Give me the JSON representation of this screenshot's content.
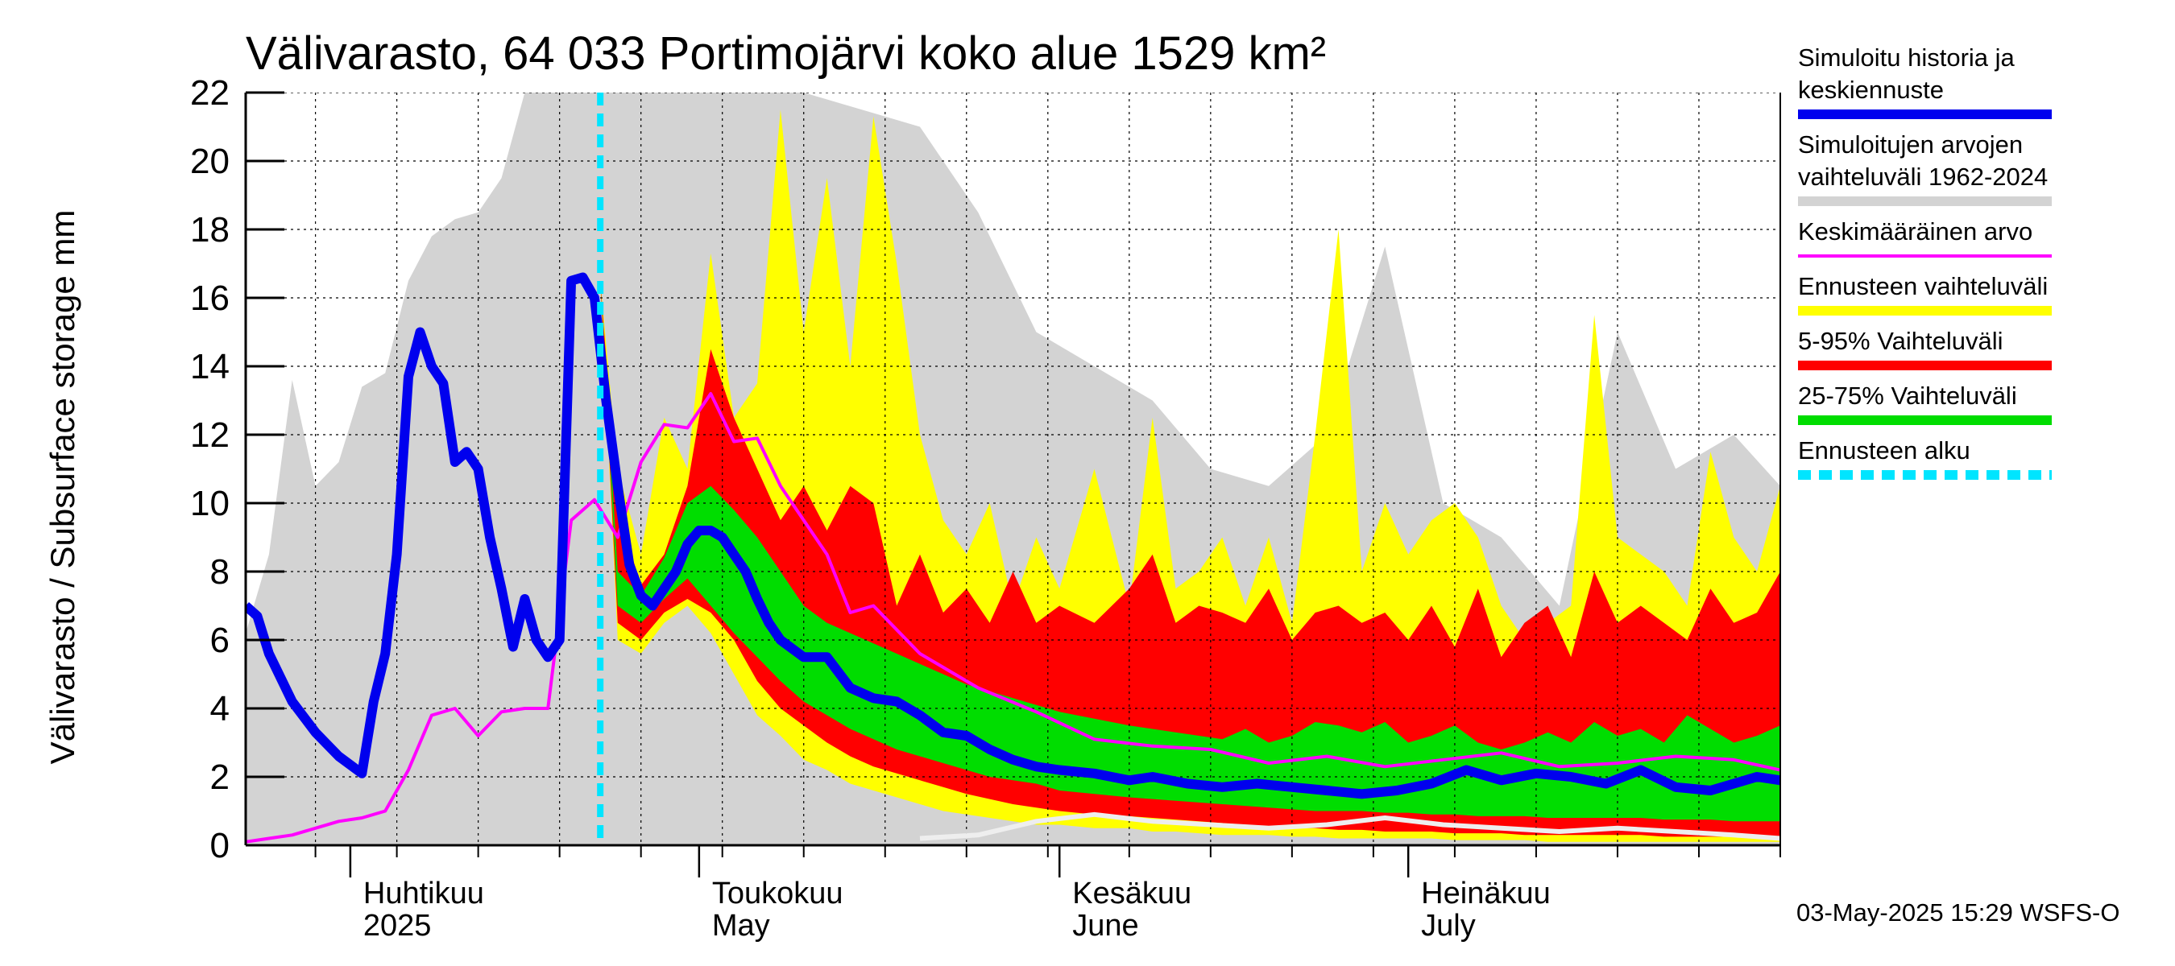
{
  "chart_data": {
    "type": "area",
    "title": "Välivarasto, 64 033 Portimojärvi koko alue 1529 km²",
    "ylabel": "Välivarasto / Subsurface storage  mm",
    "ylim": [
      0,
      22
    ],
    "yticks": [
      0,
      2,
      4,
      6,
      8,
      10,
      12,
      14,
      16,
      18,
      20,
      22
    ],
    "ytick_labels": [
      "0",
      "2",
      "4",
      "6",
      "8",
      "10",
      "12",
      "14",
      "16",
      "18",
      "20",
      "22"
    ],
    "x_unit": "day of year 2025",
    "xlim": [
      82,
      214
    ],
    "month_starts": [
      91,
      121,
      152,
      182
    ],
    "x_label_lines": [
      {
        "x": 91,
        "line1": "Huhtikuu",
        "line2": "2025"
      },
      {
        "x": 121,
        "line1": "Toukokuu",
        "line2": "May"
      },
      {
        "x": 152,
        "line1": "Kesäkuu",
        "line2": "June"
      },
      {
        "x": 182,
        "line1": "Heinäkuu",
        "line2": "July"
      }
    ],
    "forecast_start": 112.5,
    "footer": "03-May-2025 15:29 WSFS-O",
    "colors": {
      "grey_band": "#d3d3d3",
      "yellow_band": "#ffff00",
      "red_band": "#ff0000",
      "green_band": "#00dd00",
      "blue_line": "#0000ee",
      "magenta_line": "#ff00ff",
      "forecast_start_line": "#00e5ff",
      "white_line": "#eeeeee"
    },
    "legend": [
      {
        "label": "Simuloitu historia ja keskiennuste",
        "color": "#0000ee",
        "style": "solid"
      },
      {
        "label": "Simuloitujen arvojen vaihteluväli 1962-2024",
        "color": "#d3d3d3",
        "style": "solid"
      },
      {
        "label": "Keskimääräinen arvo",
        "color": "#ff00ff",
        "style": "thin"
      },
      {
        "label": "Ennusteen vaihteluväli",
        "color": "#ffff00",
        "style": "solid"
      },
      {
        "label": "5-95% Vaihteluväli",
        "color": "#ff0000",
        "style": "solid"
      },
      {
        "label": "25-75% Vaihteluväli",
        "color": "#00dd00",
        "style": "solid"
      },
      {
        "label": "Ennusteen alku",
        "color": "#00e5ff",
        "style": "dashed"
      }
    ],
    "series": [
      {
        "name": "Simuloitujen arvojen vaihteluväli 1962-2024",
        "kind": "band",
        "x": [
          82,
          84,
          86,
          88,
          90,
          92,
          94,
          96,
          98,
          100,
          102,
          104,
          106,
          108,
          110,
          112,
          114,
          116,
          118,
          120,
          122,
          124,
          126,
          128,
          130,
          135,
          140,
          145,
          150,
          155,
          160,
          165,
          170,
          175,
          180,
          185,
          190,
          195,
          200,
          205,
          210,
          214
        ],
        "upper": [
          6.2,
          8.5,
          13.6,
          10.5,
          11.2,
          13.4,
          13.8,
          16.5,
          17.8,
          18.3,
          18.5,
          19.5,
          22,
          22,
          22,
          22,
          22,
          22,
          22,
          22,
          22,
          22,
          22,
          22,
          22,
          21.5,
          21,
          18.5,
          15,
          14,
          13,
          11,
          10.5,
          12,
          17.5,
          10,
          9,
          7,
          15,
          11,
          12,
          10.5
        ],
        "lower": [
          0,
          0,
          0,
          0,
          0,
          0,
          0,
          0,
          0,
          0,
          0,
          0,
          0,
          0,
          0,
          0,
          0,
          0,
          0,
          0,
          0,
          0,
          0,
          0,
          0,
          0,
          0,
          0,
          0,
          0,
          0,
          0,
          0,
          0,
          0,
          0,
          0,
          0,
          0,
          0,
          0,
          0
        ]
      },
      {
        "name": "Ennusteen vaihteluväli",
        "kind": "band",
        "x": [
          112.5,
          114,
          116,
          118,
          120,
          122,
          124,
          126,
          128,
          130,
          132,
          134,
          136,
          138,
          140,
          142,
          144,
          146,
          148,
          150,
          152,
          155,
          158,
          160,
          162,
          164,
          166,
          168,
          170,
          172,
          174,
          176,
          178,
          180,
          182,
          184,
          186,
          188,
          190,
          192,
          194,
          196,
          198,
          200,
          202,
          204,
          206,
          208,
          210,
          212,
          214
        ],
        "upper": [
          16.5,
          11,
          8.5,
          12.5,
          11,
          17.3,
          12.5,
          13.5,
          21.5,
          15,
          19.5,
          14,
          21.3,
          17,
          12,
          9.5,
          8.5,
          10,
          7,
          9,
          7.5,
          11,
          7,
          12.5,
          7.5,
          8,
          9,
          7,
          9,
          6.5,
          12,
          18,
          8,
          10,
          8.5,
          9.5,
          10,
          9,
          7,
          6,
          6.5,
          7,
          15.5,
          9,
          8.5,
          8,
          7,
          11.5,
          9,
          8,
          10.5
        ],
        "lower": [
          16.5,
          6.0,
          5.6,
          6.5,
          7.0,
          6.2,
          5.0,
          3.8,
          3.2,
          2.5,
          2.2,
          1.8,
          1.6,
          1.4,
          1.2,
          1.0,
          0.9,
          0.8,
          0.7,
          0.6,
          0.6,
          0.5,
          0.5,
          0.4,
          0.4,
          0.35,
          0.3,
          0.3,
          0.3,
          0.25,
          0.25,
          0.2,
          0.2,
          0.2,
          0.2,
          0.2,
          0.15,
          0.15,
          0.15,
          0.15,
          0.1,
          0.1,
          0.1,
          0.1,
          0.1,
          0.1,
          0.1,
          0.1,
          0.1,
          0.1,
          0.1
        ]
      },
      {
        "name": "5-95% Vaihteluväli",
        "kind": "band",
        "x": [
          112.5,
          114,
          116,
          118,
          120,
          122,
          124,
          126,
          128,
          130,
          132,
          134,
          136,
          138,
          140,
          142,
          144,
          146,
          148,
          150,
          152,
          155,
          158,
          160,
          162,
          164,
          166,
          168,
          170,
          172,
          174,
          176,
          178,
          180,
          182,
          184,
          186,
          188,
          190,
          192,
          194,
          196,
          198,
          200,
          202,
          204,
          206,
          208,
          210,
          212,
          214
        ],
        "upper": [
          16.5,
          9.8,
          7.6,
          8.5,
          10.5,
          14.5,
          12.5,
          11.0,
          9.5,
          10.5,
          9.2,
          10.5,
          10.0,
          7.0,
          8.5,
          6.8,
          7.5,
          6.5,
          8.0,
          6.5,
          7.0,
          6.5,
          7.5,
          8.5,
          6.5,
          7.0,
          6.8,
          6.5,
          7.5,
          6.0,
          6.8,
          7.0,
          6.5,
          6.8,
          6.0,
          7.0,
          5.8,
          7.5,
          5.5,
          6.5,
          7.0,
          5.5,
          8.0,
          6.5,
          7.0,
          6.5,
          6.0,
          7.5,
          6.5,
          6.8,
          8.0
        ],
        "lower": [
          16.5,
          6.5,
          6.0,
          6.8,
          7.2,
          6.8,
          6.0,
          4.8,
          4.0,
          3.5,
          3.0,
          2.6,
          2.3,
          2.1,
          1.9,
          1.7,
          1.5,
          1.35,
          1.2,
          1.1,
          1.0,
          0.9,
          0.85,
          0.8,
          0.75,
          0.7,
          0.65,
          0.6,
          0.55,
          0.5,
          0.5,
          0.45,
          0.45,
          0.4,
          0.4,
          0.4,
          0.35,
          0.35,
          0.35,
          0.3,
          0.3,
          0.3,
          0.3,
          0.3,
          0.3,
          0.25,
          0.25,
          0.25,
          0.25,
          0.25,
          0.25
        ]
      },
      {
        "name": "25-75% Vaihteluväli",
        "kind": "band",
        "x": [
          112.5,
          114,
          116,
          118,
          120,
          122,
          124,
          126,
          128,
          130,
          132,
          134,
          136,
          138,
          140,
          142,
          144,
          146,
          148,
          150,
          152,
          155,
          158,
          160,
          162,
          164,
          166,
          168,
          170,
          172,
          174,
          176,
          178,
          180,
          182,
          184,
          186,
          188,
          190,
          192,
          194,
          196,
          198,
          200,
          202,
          204,
          206,
          208,
          210,
          212,
          214
        ],
        "upper": [
          16.5,
          8.0,
          7.3,
          8.4,
          10.0,
          10.5,
          9.8,
          9.0,
          8.0,
          7.0,
          6.5,
          6.2,
          5.9,
          5.6,
          5.3,
          5.0,
          4.7,
          4.5,
          4.3,
          4.1,
          3.9,
          3.7,
          3.5,
          3.4,
          3.3,
          3.2,
          3.1,
          3.4,
          3.0,
          3.2,
          3.6,
          3.5,
          3.3,
          3.6,
          3.0,
          3.2,
          3.5,
          3.0,
          2.8,
          3.0,
          3.3,
          3.0,
          3.6,
          3.2,
          3.4,
          3.0,
          3.8,
          3.4,
          3.0,
          3.2,
          3.5
        ],
        "lower": [
          16.5,
          7.0,
          6.5,
          7.2,
          7.8,
          7.0,
          6.2,
          5.5,
          4.8,
          4.2,
          3.8,
          3.4,
          3.1,
          2.8,
          2.6,
          2.4,
          2.2,
          2.0,
          1.9,
          1.8,
          1.6,
          1.5,
          1.4,
          1.35,
          1.3,
          1.25,
          1.2,
          1.15,
          1.1,
          1.05,
          1.0,
          1.0,
          1.0,
          0.95,
          0.95,
          0.9,
          0.9,
          0.85,
          0.85,
          0.85,
          0.8,
          0.8,
          0.8,
          0.8,
          0.8,
          0.75,
          0.75,
          0.75,
          0.7,
          0.7,
          0.7
        ]
      },
      {
        "name": "Keskimääräinen arvo",
        "kind": "line",
        "x": [
          82,
          84,
          86,
          88,
          90,
          92,
          94,
          96,
          98,
          100,
          102,
          104,
          106,
          108,
          110,
          112,
          114,
          116,
          118,
          120,
          122,
          124,
          126,
          128,
          130,
          132,
          134,
          136,
          138,
          140,
          145,
          150,
          155,
          160,
          165,
          170,
          175,
          180,
          185,
          190,
          195,
          200,
          205,
          210,
          214
        ],
        "values": [
          0.1,
          0.2,
          0.3,
          0.5,
          0.7,
          0.8,
          1.0,
          2.2,
          3.8,
          4.0,
          3.2,
          3.9,
          4.0,
          4.0,
          9.5,
          10.1,
          9.0,
          11.2,
          12.3,
          12.2,
          13.2,
          11.8,
          11.9,
          10.5,
          9.5,
          8.5,
          6.8,
          7.0,
          6.3,
          5.6,
          4.6,
          3.9,
          3.1,
          2.9,
          2.8,
          2.4,
          2.6,
          2.3,
          2.5,
          2.7,
          2.3,
          2.4,
          2.6,
          2.5,
          2.2
        ]
      },
      {
        "name": "Simuloitu historia ja keskiennuste",
        "kind": "line",
        "x": [
          82,
          83,
          84,
          86,
          88,
          90,
          92,
          93,
          94,
          95,
          96,
          97,
          98,
          99,
          100,
          101,
          102,
          103,
          104,
          105,
          106,
          107,
          108,
          109,
          110,
          111,
          112,
          113,
          114,
          115,
          116,
          117,
          118,
          119,
          120,
          121,
          122,
          123,
          124,
          125,
          126,
          127,
          128,
          130,
          132,
          134,
          136,
          138,
          140,
          142,
          144,
          146,
          148,
          150,
          152,
          155,
          158,
          160,
          163,
          166,
          169,
          172,
          175,
          178,
          181,
          184,
          187,
          190,
          193,
          196,
          199,
          202,
          205,
          208,
          210,
          212,
          214
        ],
        "values": [
          7.0,
          6.7,
          5.6,
          4.2,
          3.3,
          2.6,
          2.1,
          4.2,
          5.6,
          8.5,
          13.7,
          15.0,
          14.0,
          13.5,
          11.2,
          11.5,
          11.0,
          9.0,
          7.5,
          5.8,
          7.2,
          6.0,
          5.5,
          6.0,
          16.5,
          16.6,
          16.0,
          13.0,
          10.5,
          8.2,
          7.3,
          7.0,
          7.5,
          8.0,
          8.8,
          9.2,
          9.2,
          9.0,
          8.5,
          8.0,
          7.2,
          6.5,
          6.0,
          5.5,
          5.5,
          4.6,
          4.3,
          4.2,
          3.8,
          3.3,
          3.2,
          2.8,
          2.5,
          2.3,
          2.2,
          2.1,
          1.9,
          2.0,
          1.8,
          1.7,
          1.8,
          1.7,
          1.6,
          1.5,
          1.6,
          1.8,
          2.2,
          1.9,
          2.1,
          2.0,
          1.8,
          2.2,
          1.7,
          1.6,
          1.8,
          2.0,
          1.9
        ]
      },
      {
        "name": "minimum forecast",
        "kind": "line",
        "x": [
          140,
          145,
          150,
          155,
          160,
          165,
          170,
          175,
          180,
          185,
          190,
          195,
          200,
          205,
          210,
          214
        ],
        "values": [
          0.2,
          0.3,
          0.7,
          0.9,
          0.7,
          0.6,
          0.5,
          0.6,
          0.8,
          0.6,
          0.5,
          0.4,
          0.5,
          0.4,
          0.3,
          0.2
        ]
      }
    ]
  }
}
